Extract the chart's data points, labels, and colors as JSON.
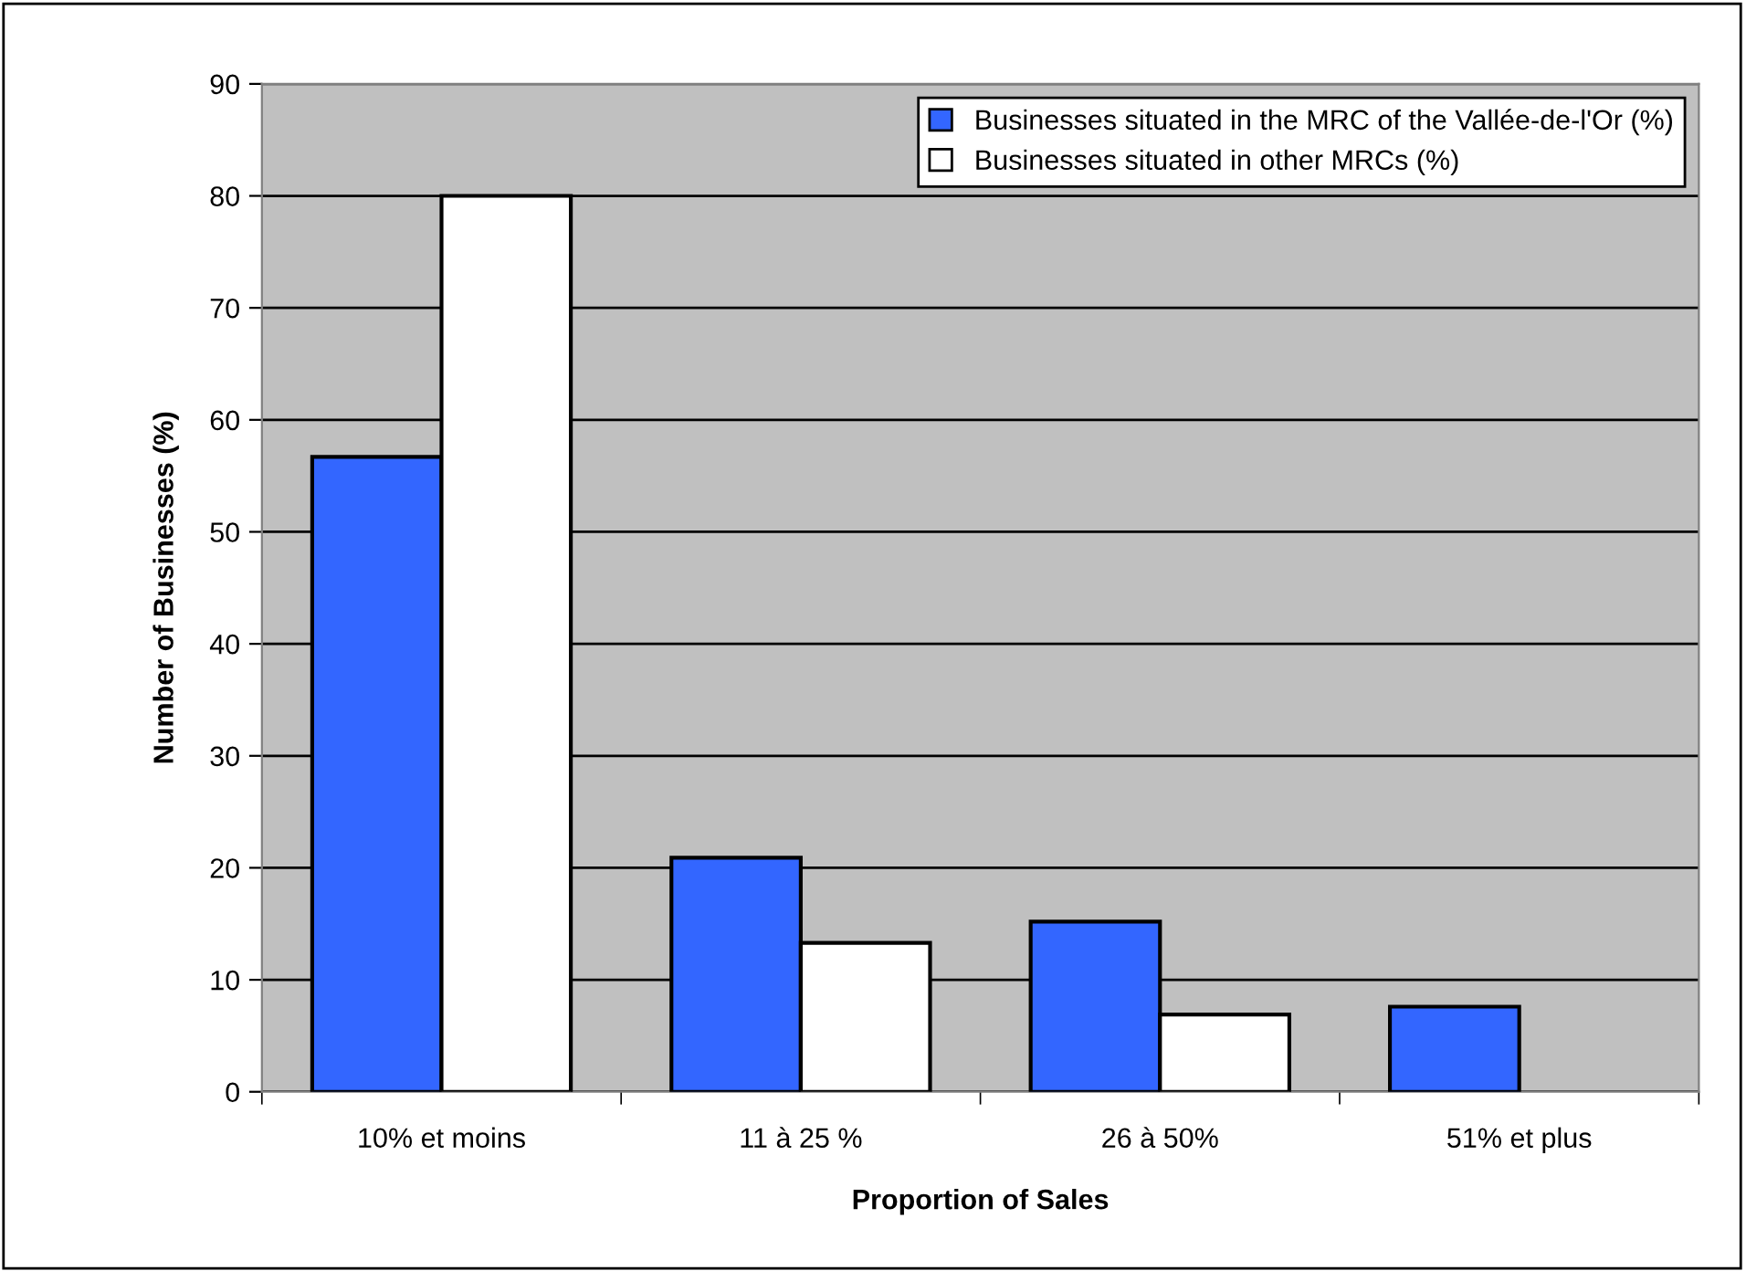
{
  "chart_data": {
    "type": "bar",
    "xlabel": "Proportion of Sales",
    "ylabel": "Number of Businesses (%)",
    "categories": [
      "10% et moins",
      "11 à 25 %",
      "26 à 50%",
      "51% et plus"
    ],
    "series": [
      {
        "name": "Businesses situated in the MRC of the Vallée-de-l'Or (%)",
        "color": "#3366ff",
        "values": [
          56.7,
          20.9,
          15.2,
          7.6
        ]
      },
      {
        "name": "Businesses situated in other MRCs (%)",
        "color": "#ffffff",
        "values": [
          80,
          13.3,
          6.9,
          null
        ]
      }
    ],
    "ylim": [
      0,
      90
    ],
    "yticks": [
      0,
      10,
      20,
      30,
      40,
      50,
      60,
      70,
      80,
      90
    ],
    "grid": "y",
    "legend": "top right"
  }
}
